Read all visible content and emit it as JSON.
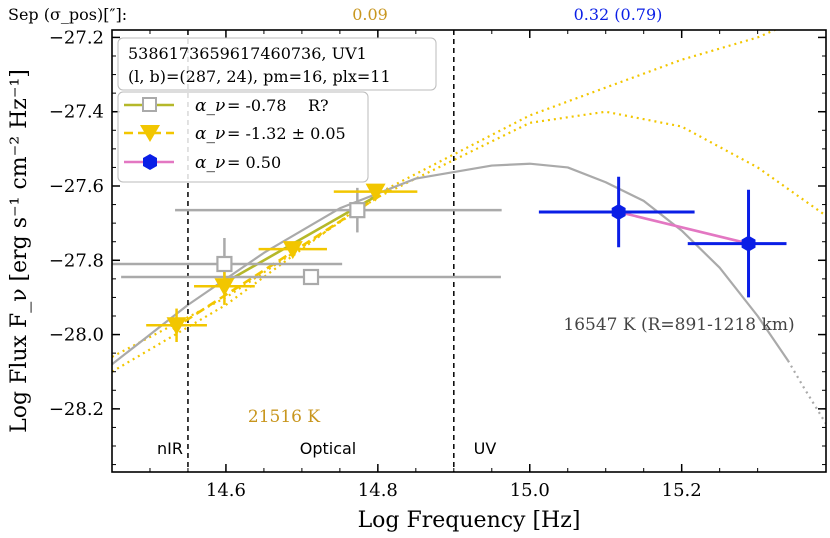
{
  "chart_data": {
    "type": "scatter",
    "xlabel": "Log Frequency [Hz]",
    "ylabel": "Log Flux F_ν [erg s⁻¹ cm⁻² Hz⁻¹]",
    "xlim": [
      14.45,
      15.39
    ],
    "ylim": [
      -28.37,
      -27.18
    ],
    "x_ticks": [
      14.6,
      14.8,
      15.0,
      15.2
    ],
    "y_ticks": [
      -27.2,
      -27.4,
      -27.6,
      -27.8,
      -28.0,
      -28.2
    ],
    "x_tick_labels": [
      "14.6",
      "14.8",
      "15.0",
      "15.2"
    ],
    "y_tick_labels": [
      "−27.2",
      "−27.4",
      "−27.6",
      "−27.8",
      "−28.0",
      "−28.2"
    ],
    "top_annotation": {
      "label": "Sep (σ_pos)[″]:",
      "optical_value": "0.09",
      "uv_value": "0.32 (0.79)"
    },
    "info_box": {
      "line1": "5386173659617460736, UV1",
      "line2": "(l, b)=(287, 24), pm=16, plx=11"
    },
    "legend": [
      {
        "symbol": "α_ν",
        "value": "= -0.78",
        "note": "R?",
        "color": "#b5b82a",
        "marker": "open-square"
      },
      {
        "symbol": "α_ν",
        "value": "= -1.32 ± 0.05",
        "note": "",
        "color": "#f2c600",
        "marker": "triangle-down"
      },
      {
        "symbol": "α_ν",
        "value": "= 0.50",
        "note": "",
        "color": "#e377c2",
        "marker": "hexagon"
      }
    ],
    "band_labels": [
      "nIR",
      "Optical",
      "UV"
    ],
    "band_boundaries": [
      14.55,
      14.9
    ],
    "annotations": {
      "cool_bb": "21516 K",
      "hot_bb": "16547 K (R=891-1218 km)"
    },
    "series": [
      {
        "name": "gray squares",
        "color": "#aaaaaa",
        "points": [
          {
            "x": 14.598,
            "y": -27.81,
            "xerr": [
              0.155,
              0.155
            ],
            "yerr": [
              0.07,
              0.07
            ]
          },
          {
            "x": 14.712,
            "y": -27.845,
            "xerr": [
              0.25,
              0.25
            ],
            "yerr": [
              0.0,
              0.0
            ]
          },
          {
            "x": 14.773,
            "y": -27.665,
            "xerr": [
              0.24,
              0.19
            ],
            "yerr": [
              0.06,
              0.06
            ]
          }
        ]
      },
      {
        "name": "yellow triangles",
        "color": "#f2c600",
        "points": [
          {
            "x": 14.535,
            "y": -27.975,
            "xerr": [
              0.04,
              0.04
            ],
            "yerr": [
              0.045,
              0.045
            ]
          },
          {
            "x": 14.598,
            "y": -27.87,
            "xerr": [
              0.04,
              0.04
            ],
            "yerr": [
              0.05,
              0.05
            ]
          },
          {
            "x": 14.688,
            "y": -27.77,
            "xerr": [
              0.045,
              0.045
            ],
            "yerr": [
              0.0,
              0.0
            ]
          },
          {
            "x": 14.797,
            "y": -27.615,
            "xerr": [
              0.055,
              0.055
            ],
            "yerr": [
              0.0,
              0.0
            ]
          }
        ]
      },
      {
        "name": "blue hexagons",
        "color": "#0a1ee6",
        "points": [
          {
            "x": 15.117,
            "y": -27.67,
            "xerr": [
              0.105,
              0.1
            ],
            "yerr": [
              0.095,
              0.095
            ]
          },
          {
            "x": 15.288,
            "y": -27.755,
            "xerr": [
              0.08,
              0.05
            ],
            "yerr": [
              0.145,
              0.145
            ]
          }
        ]
      }
    ],
    "fit_lines": [
      {
        "name": "olive fit",
        "color": "#b5b82a",
        "style": "solid",
        "points": [
          [
            14.59,
            -27.87
          ],
          [
            14.8,
            -27.625
          ]
        ]
      },
      {
        "name": "yellow fit",
        "color": "#f2c600",
        "style": "dashed",
        "points": [
          [
            14.53,
            -27.985
          ],
          [
            14.815,
            -27.61
          ]
        ]
      },
      {
        "name": "pink fit",
        "color": "#e377c2",
        "style": "solid",
        "points": [
          [
            15.117,
            -27.67
          ],
          [
            15.288,
            -27.755
          ]
        ]
      }
    ],
    "models": [
      {
        "name": "yellow blackbody upper",
        "color": "#f2c600",
        "style": "dotted",
        "points": [
          [
            14.45,
            -28.06
          ],
          [
            14.6,
            -27.9
          ],
          [
            14.8,
            -27.63
          ],
          [
            15.0,
            -27.43
          ],
          [
            15.1,
            -27.4
          ],
          [
            15.2,
            -27.44
          ],
          [
            15.3,
            -27.55
          ],
          [
            15.39,
            -27.68
          ]
        ]
      },
      {
        "name": "yellow blackbody lower",
        "color": "#f2c600",
        "style": "dotted",
        "points": [
          [
            14.45,
            -28.1
          ],
          [
            14.6,
            -27.92
          ],
          [
            14.8,
            -27.62
          ],
          [
            15.0,
            -27.41
          ],
          [
            15.2,
            -27.26
          ],
          [
            15.3,
            -27.2
          ],
          [
            15.39,
            -27.12
          ]
        ]
      },
      {
        "name": "gray blackbody",
        "color": "#aaaaaa",
        "style": "solid",
        "points": [
          [
            14.45,
            -28.08
          ],
          [
            14.55,
            -27.92
          ],
          [
            14.65,
            -27.78
          ],
          [
            14.75,
            -27.66
          ],
          [
            14.85,
            -27.58
          ],
          [
            14.95,
            -27.545
          ],
          [
            15.0,
            -27.54
          ],
          [
            15.05,
            -27.55
          ],
          [
            15.1,
            -27.59
          ],
          [
            15.15,
            -27.64
          ],
          [
            15.2,
            -27.72
          ],
          [
            15.25,
            -27.82
          ],
          [
            15.3,
            -27.95
          ],
          [
            15.34,
            -28.07
          ]
        ]
      },
      {
        "name": "gray blackbody tail",
        "color": "#aaaaaa",
        "style": "dotted",
        "points": [
          [
            15.34,
            -28.07
          ],
          [
            15.36,
            -28.14
          ],
          [
            15.39,
            -28.24
          ]
        ]
      }
    ]
  }
}
